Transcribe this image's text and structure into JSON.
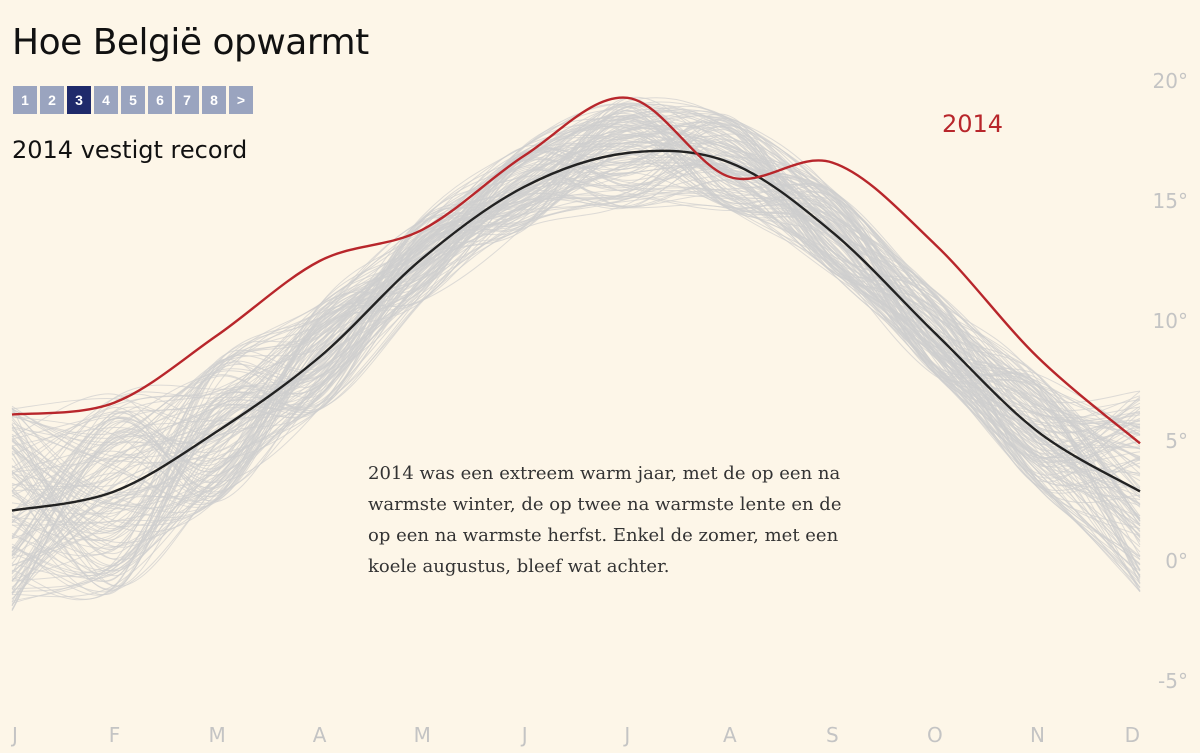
{
  "header": {
    "title": "Hoe België opwarmt",
    "subtitle": "2014 vestigt record",
    "pager": [
      "1",
      "2",
      "3",
      "4",
      "5",
      "6",
      "7",
      "8",
      ">"
    ],
    "active_page": 2
  },
  "annotation": "2014 was een extreem warm jaar, met de op een na warmste winter, de op twee na warmste lente en de op een na warmste herfst. Enkel de zomer, met een koele augustus, bleef wat achter.",
  "colors": {
    "background": "#fdf6e8",
    "highlight": "#b8262b",
    "average": "#222222",
    "history": "#cfcfcf",
    "pager": "#9aa4bf",
    "pager_active": "#1f2a6b"
  },
  "chart_data": {
    "type": "line",
    "x": [
      "J",
      "F",
      "M",
      "A",
      "M",
      "J",
      "J",
      "A",
      "S",
      "O",
      "N",
      "D"
    ],
    "ylim": [
      -6,
      23
    ],
    "yticks": [
      -5,
      0,
      5,
      10,
      15,
      20
    ],
    "ytick_labels": [
      "-5°",
      "0°",
      "5°",
      "10°",
      "15°",
      "20°"
    ],
    "series": [
      {
        "name": "2014",
        "role": "highlight",
        "values": [
          6.1,
          6.6,
          9.4,
          12.5,
          13.8,
          16.9,
          19.3,
          16.0,
          16.6,
          13.2,
          8.5,
          4.9
        ]
      },
      {
        "role": "average",
        "values": [
          2.1,
          2.9,
          5.4,
          8.5,
          12.6,
          15.6,
          17.0,
          16.6,
          13.7,
          9.5,
          5.4,
          2.9
        ]
      }
    ],
    "history_band": {
      "role": "history",
      "spread": [
        4.5,
        4.2,
        3.0,
        2.2,
        1.8,
        1.8,
        2.3,
        2.0,
        1.8,
        1.8,
        2.4,
        4.2
      ]
    }
  }
}
